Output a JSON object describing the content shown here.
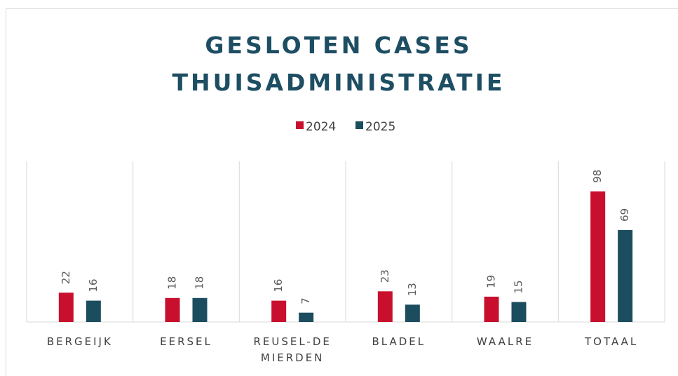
{
  "chart_data": {
    "type": "bar",
    "title": "GESLOTEN CASES THUISADMINISTRATIE",
    "categories": [
      "BERGEIJK",
      "EERSEL",
      "REUSEL-DE MIERDEN",
      "BLADEL",
      "WAALRE",
      "TOTAAL"
    ],
    "series": [
      {
        "name": "2024",
        "color": "#c8102e",
        "values": [
          22,
          18,
          16,
          23,
          19,
          98
        ]
      },
      {
        "name": "2025",
        "color": "#1b4d5e",
        "values": [
          16,
          18,
          7,
          13,
          15,
          69
        ]
      }
    ],
    "legend": "top"
  }
}
